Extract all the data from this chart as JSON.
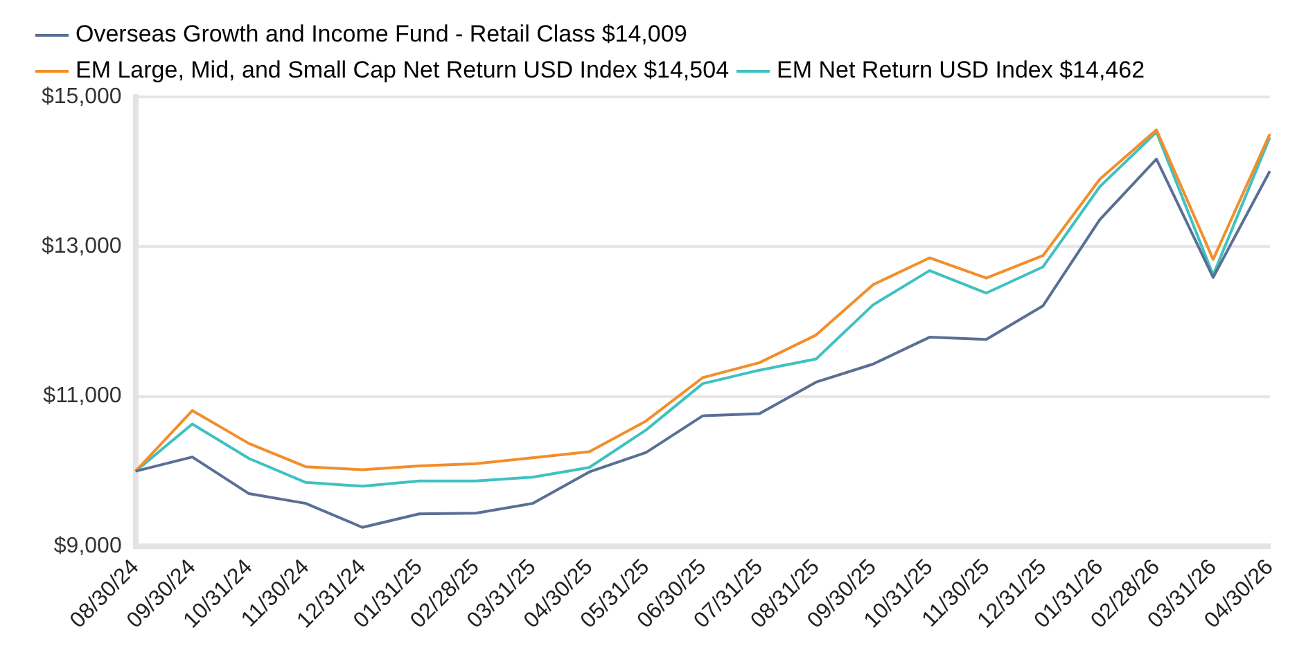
{
  "chart_data": {
    "type": "line",
    "categories": [
      "08/30/24",
      "09/30/24",
      "10/31/24",
      "11/30/24",
      "12/31/24",
      "01/31/25",
      "02/28/25",
      "03/31/25",
      "04/30/25",
      "05/31/25",
      "06/30/25",
      "07/31/25",
      "08/31/25",
      "09/30/25",
      "10/31/25",
      "11/30/25",
      "12/31/25",
      "01/31/26",
      "02/28/26",
      "03/31/26",
      "04/30/26"
    ],
    "series": [
      {
        "name": "Overseas Growth and Income Fund - Retail Class $14,009",
        "color": "#5b6f95",
        "values": [
          10000,
          10190,
          9700,
          9570,
          9250,
          9430,
          9440,
          9570,
          9990,
          10250,
          10740,
          10770,
          11190,
          11430,
          11790,
          11760,
          12210,
          13360,
          14170,
          12590,
          14009
        ]
      },
      {
        "name": "EM Large, Mid, and Small Cap Net Return USD Index $14,504",
        "color": "#f28e2b",
        "values": [
          10000,
          10810,
          10370,
          10060,
          10020,
          10070,
          10100,
          10180,
          10260,
          10670,
          11250,
          11450,
          11820,
          12490,
          12850,
          12580,
          12880,
          13900,
          14560,
          12830,
          14504
        ]
      },
      {
        "name": "EM Net Return USD Index $14,462",
        "color": "#3fc1c0",
        "values": [
          10000,
          10630,
          10170,
          9850,
          9800,
          9870,
          9870,
          9920,
          10050,
          10550,
          11170,
          11350,
          11500,
          12220,
          12680,
          12380,
          12730,
          13800,
          14530,
          12620,
          14462
        ]
      }
    ],
    "ylim": [
      9000,
      15000
    ],
    "yticks": [
      {
        "value": 9000,
        "label": "$9,000"
      },
      {
        "value": 11000,
        "label": "$11,000"
      },
      {
        "value": 13000,
        "label": "$13,000"
      },
      {
        "value": 15000,
        "label": "$15,000"
      }
    ],
    "grid": "y",
    "legend": "top left",
    "marker": "none",
    "line_style": "solid"
  }
}
